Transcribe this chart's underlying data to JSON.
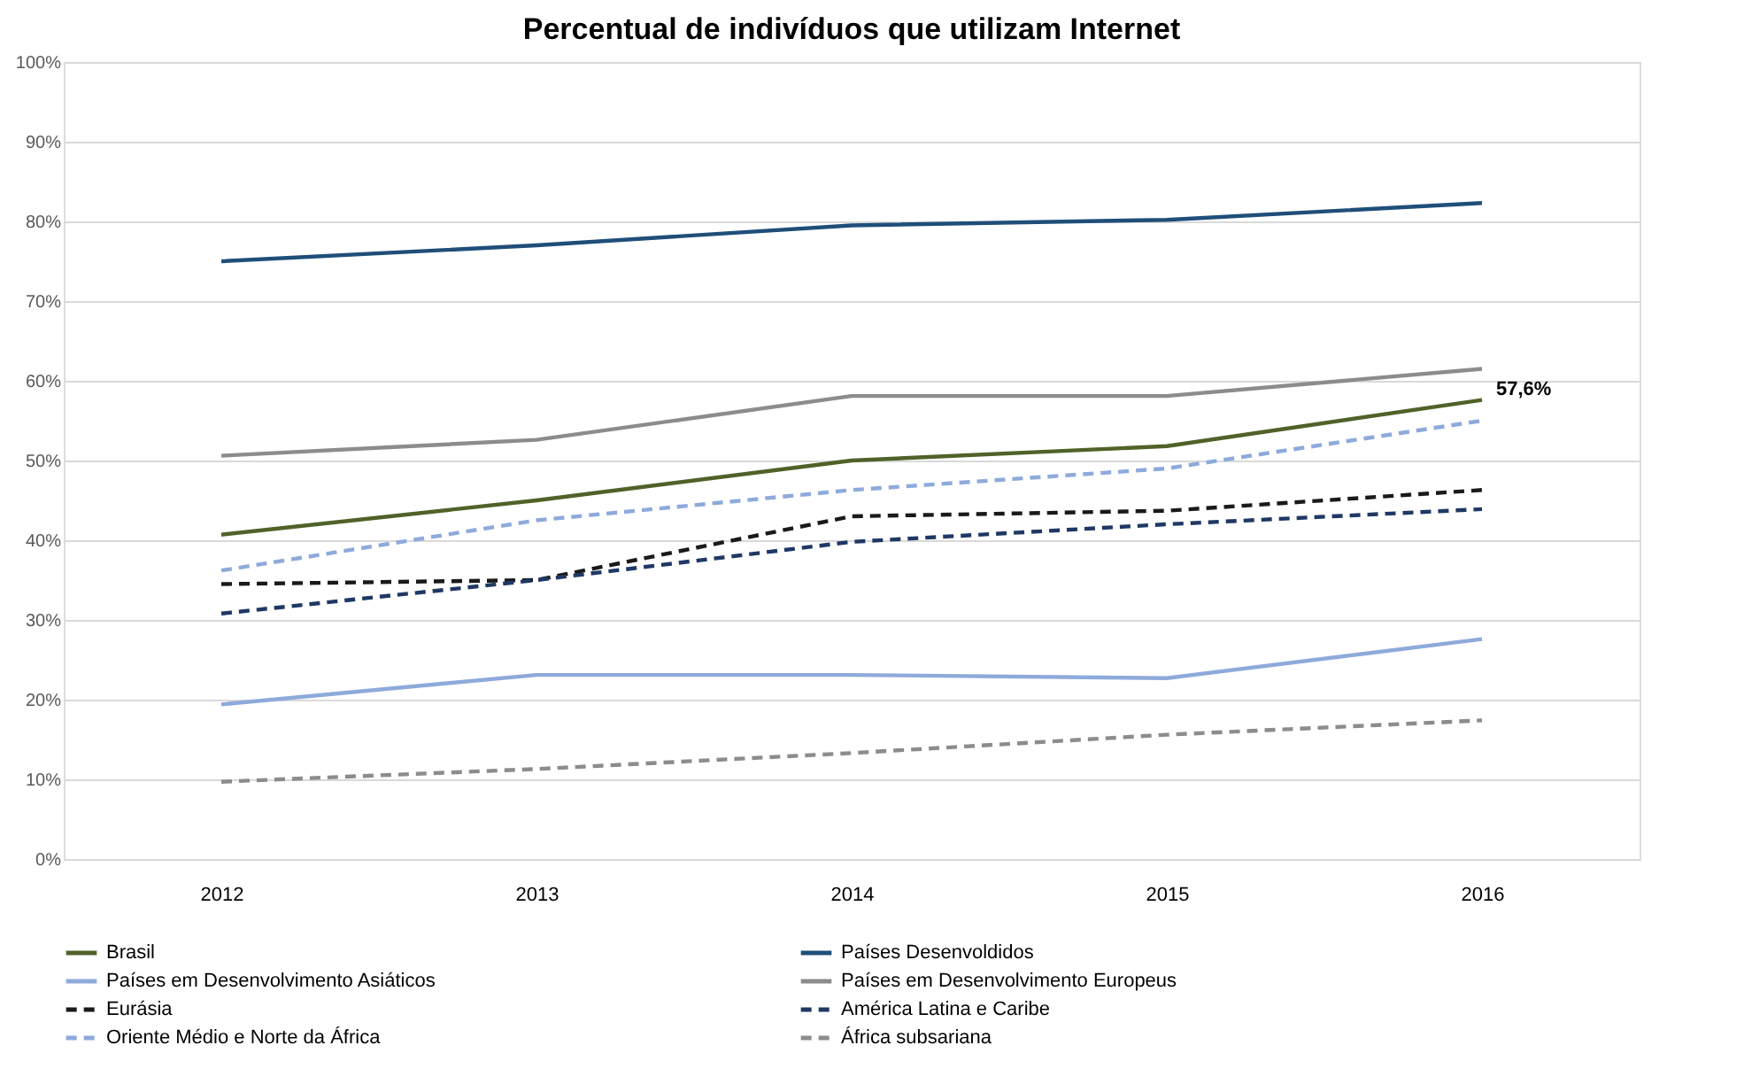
{
  "chart_data": {
    "type": "line",
    "title": "Percentual de indivíduos que utilizam Internet",
    "categories": [
      "2012",
      "2013",
      "2014",
      "2015",
      "2016"
    ],
    "series": [
      {
        "name": "Brasil",
        "color": "#4f6228",
        "line_style": "solid",
        "values": [
          40.7,
          45,
          50,
          51.8,
          57.6
        ]
      },
      {
        "name": "Países Desenvoldidos",
        "color": "#1f4e79",
        "line_style": "solid",
        "values": [
          75,
          77,
          79.5,
          80.2,
          82.3
        ]
      },
      {
        "name": "Países em Desenvolvimento Asiáticos",
        "color": "#8eaadb",
        "line_style": "solid",
        "values": [
          19.4,
          23.1,
          23.1,
          22.7,
          27.6
        ]
      },
      {
        "name": "Países em Desenvolvimento Europeus",
        "color": "#8c8c8c",
        "line_style": "solid",
        "values": [
          50.6,
          52.6,
          58.1,
          58.1,
          61.5
        ]
      },
      {
        "name": "Eurásia",
        "color": "#1a1a1a",
        "line_style": "dashed",
        "values": [
          34.5,
          35,
          43,
          43.7,
          46.3
        ]
      },
      {
        "name": "América Latina e Caribe",
        "color": "#1f3864",
        "line_style": "dashed",
        "values": [
          30.8,
          35,
          39.8,
          42,
          43.9
        ]
      },
      {
        "name": "Oriente Médio e Norte da África",
        "color": "#8eaadb",
        "line_style": "dashed",
        "values": [
          36.2,
          42.5,
          46.3,
          49,
          55
        ]
      },
      {
        "name": "África subsariana",
        "color": "#8c8c8c",
        "line_style": "dashed",
        "values": [
          9.7,
          11.3,
          13.3,
          15.6,
          17.4
        ]
      }
    ],
    "ylim": [
      0,
      100
    ],
    "yticks": [
      {
        "value": 0,
        "label": "0%"
      },
      {
        "value": 10,
        "label": "10%"
      },
      {
        "value": 20,
        "label": "20%"
      },
      {
        "value": 30,
        "label": "30%"
      },
      {
        "value": 40,
        "label": "40%"
      },
      {
        "value": 50,
        "label": "50%"
      },
      {
        "value": 60,
        "label": "60%"
      },
      {
        "value": 70,
        "label": "70%"
      },
      {
        "value": 80,
        "label": "80%"
      },
      {
        "value": 90,
        "label": "90%"
      },
      {
        "value": 100,
        "label": "100%"
      }
    ],
    "grid": "y",
    "legend": "bottom",
    "marker": "none",
    "annotations": [
      {
        "text": "57,6%",
        "x": "2016",
        "y": 57.6
      }
    ]
  }
}
